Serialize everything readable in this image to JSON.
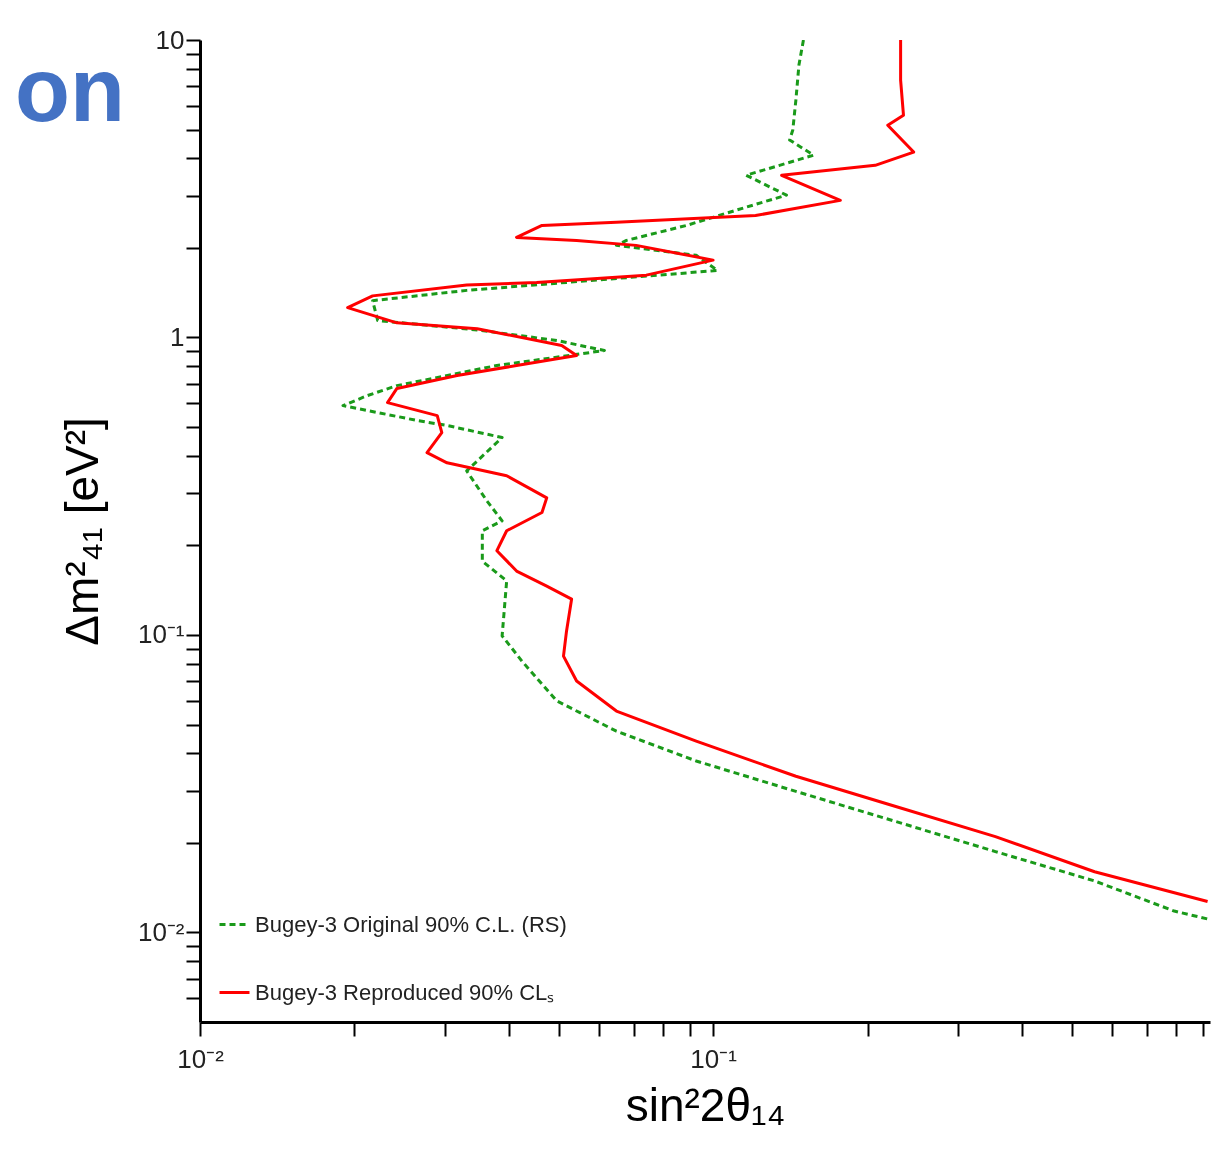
{
  "chart_data": {
    "type": "line",
    "xlabel": "sin²2θ₁₄",
    "ylabel": "Δm²₄₁ [eV²]",
    "log": "xy",
    "grid": false,
    "legend": "bottom left",
    "annotations": [
      "on"
    ],
    "xlim": [
      0.01,
      0.93
    ],
    "ylim": [
      0.005,
      10
    ],
    "xticks": [
      {
        "value": 0.01,
        "label": "10⁻²"
      },
      {
        "value": 0.02,
        "label": null
      },
      {
        "value": 0.03,
        "label": null
      },
      {
        "value": 0.04,
        "label": null
      },
      {
        "value": 0.05,
        "label": null
      },
      {
        "value": 0.06,
        "label": null
      },
      {
        "value": 0.07,
        "label": null
      },
      {
        "value": 0.08,
        "label": null
      },
      {
        "value": 0.09,
        "label": null
      },
      {
        "value": 0.1,
        "label": "10⁻¹"
      },
      {
        "value": 0.2,
        "label": null
      },
      {
        "value": 0.3,
        "label": null
      },
      {
        "value": 0.4,
        "label": null
      },
      {
        "value": 0.5,
        "label": null
      },
      {
        "value": 0.6,
        "label": null
      },
      {
        "value": 0.7,
        "label": null
      },
      {
        "value": 0.8,
        "label": null
      },
      {
        "value": 0.9,
        "label": null
      }
    ],
    "yticks": [
      {
        "value": 0.006,
        "label": null
      },
      {
        "value": 0.007,
        "label": null
      },
      {
        "value": 0.008,
        "label": null
      },
      {
        "value": 0.009,
        "label": null
      },
      {
        "value": 0.01,
        "label": "10⁻²"
      },
      {
        "value": 0.02,
        "label": null
      },
      {
        "value": 0.03,
        "label": null
      },
      {
        "value": 0.04,
        "label": null
      },
      {
        "value": 0.05,
        "label": null
      },
      {
        "value": 0.06,
        "label": null
      },
      {
        "value": 0.07,
        "label": null
      },
      {
        "value": 0.08,
        "label": null
      },
      {
        "value": 0.09,
        "label": null
      },
      {
        "value": 0.1,
        "label": "10⁻¹"
      },
      {
        "value": 0.2,
        "label": null
      },
      {
        "value": 0.3,
        "label": null
      },
      {
        "value": 0.4,
        "label": null
      },
      {
        "value": 0.5,
        "label": null
      },
      {
        "value": 0.6,
        "label": null
      },
      {
        "value": 0.7,
        "label": null
      },
      {
        "value": 0.8,
        "label": null
      },
      {
        "value": 0.9,
        "label": null
      },
      1,
      {
        "value": 2,
        "label": null
      },
      {
        "value": 3,
        "label": null
      },
      {
        "value": 4,
        "label": null
      },
      {
        "value": 5,
        "label": null
      },
      {
        "value": 6,
        "label": null
      },
      {
        "value": 7,
        "label": null
      },
      {
        "value": 8,
        "label": null
      },
      {
        "value": 9,
        "label": null
      },
      10
    ],
    "series": [
      {
        "name": "Bugey-3 Original 90% C.L. (RS)",
        "color": "#1a9a1a",
        "line_style": "dashed",
        "x": [
          0.15,
          0.147,
          0.145,
          0.143,
          0.141,
          0.157,
          0.116,
          0.139,
          0.111,
          0.0887,
          0.0678,
          0.0648,
          0.0927,
          0.102,
          0.0593,
          0.0331,
          0.0217,
          0.0222,
          0.0347,
          0.0496,
          0.0614,
          0.0379,
          0.0242,
          0.0212,
          0.019,
          0.0265,
          0.0303,
          0.0388,
          0.0331,
          0.0362,
          0.0388,
          0.0355,
          0.0355,
          0.0396,
          0.0388,
          0.0424,
          0.0496,
          0.0648,
          0.0927,
          0.145,
          0.227,
          0.355,
          0.554,
          0.792,
          0.92
        ],
        "values": [
          10,
          8.24,
          6.28,
          4.98,
          4.61,
          4.1,
          3.51,
          3.01,
          2.68,
          2.38,
          2.12,
          2.04,
          1.89,
          1.68,
          1.56,
          1.44,
          1.33,
          1.14,
          1.06,
          0.977,
          0.904,
          0.805,
          0.689,
          0.638,
          0.59,
          0.526,
          0.506,
          0.461,
          0.356,
          0.283,
          0.242,
          0.224,
          0.177,
          0.152,
          0.0993,
          0.0817,
          0.06,
          0.0475,
          0.0377,
          0.0298,
          0.0236,
          0.0187,
          0.0149,
          0.0118,
          0.0111
        ]
      },
      {
        "name": "Bugey-3 Reproduced 90% CLₛ",
        "color": "#ff0000",
        "line_style": "solid",
        "x": [
          0.232,
          0.232,
          0.235,
          0.219,
          0.246,
          0.207,
          0.136,
          0.177,
          0.121,
          0.0648,
          0.0464,
          0.0414,
          0.0542,
          0.0708,
          0.1,
          0.0741,
          0.0453,
          0.0331,
          0.0217,
          0.0194,
          0.0242,
          0.0347,
          0.0507,
          0.0542,
          0.0414,
          0.0317,
          0.0242,
          0.0232,
          0.029,
          0.0296,
          0.0277,
          0.0303,
          0.0396,
          0.0474,
          0.0464,
          0.0396,
          0.0379,
          0.0414,
          0.0474,
          0.053,
          0.0518,
          0.0511,
          0.0542,
          0.0648,
          0.0927,
          0.145,
          0.227,
          0.355,
          0.554,
          0.92
        ],
        "values": [
          10,
          7.33,
          5.59,
          5.17,
          4.2,
          3.79,
          3.51,
          2.89,
          2.57,
          2.44,
          2.38,
          2.17,
          2.12,
          2.04,
          1.82,
          1.62,
          1.53,
          1.5,
          1.38,
          1.26,
          1.12,
          1.07,
          0.94,
          0.87,
          0.805,
          0.745,
          0.674,
          0.604,
          0.546,
          0.479,
          0.41,
          0.379,
          0.343,
          0.289,
          0.258,
          0.224,
          0.192,
          0.164,
          0.146,
          0.132,
          0.103,
          0.0849,
          0.07,
          0.0555,
          0.044,
          0.0335,
          0.0265,
          0.021,
          0.016,
          0.0127
        ]
      }
    ]
  }
}
